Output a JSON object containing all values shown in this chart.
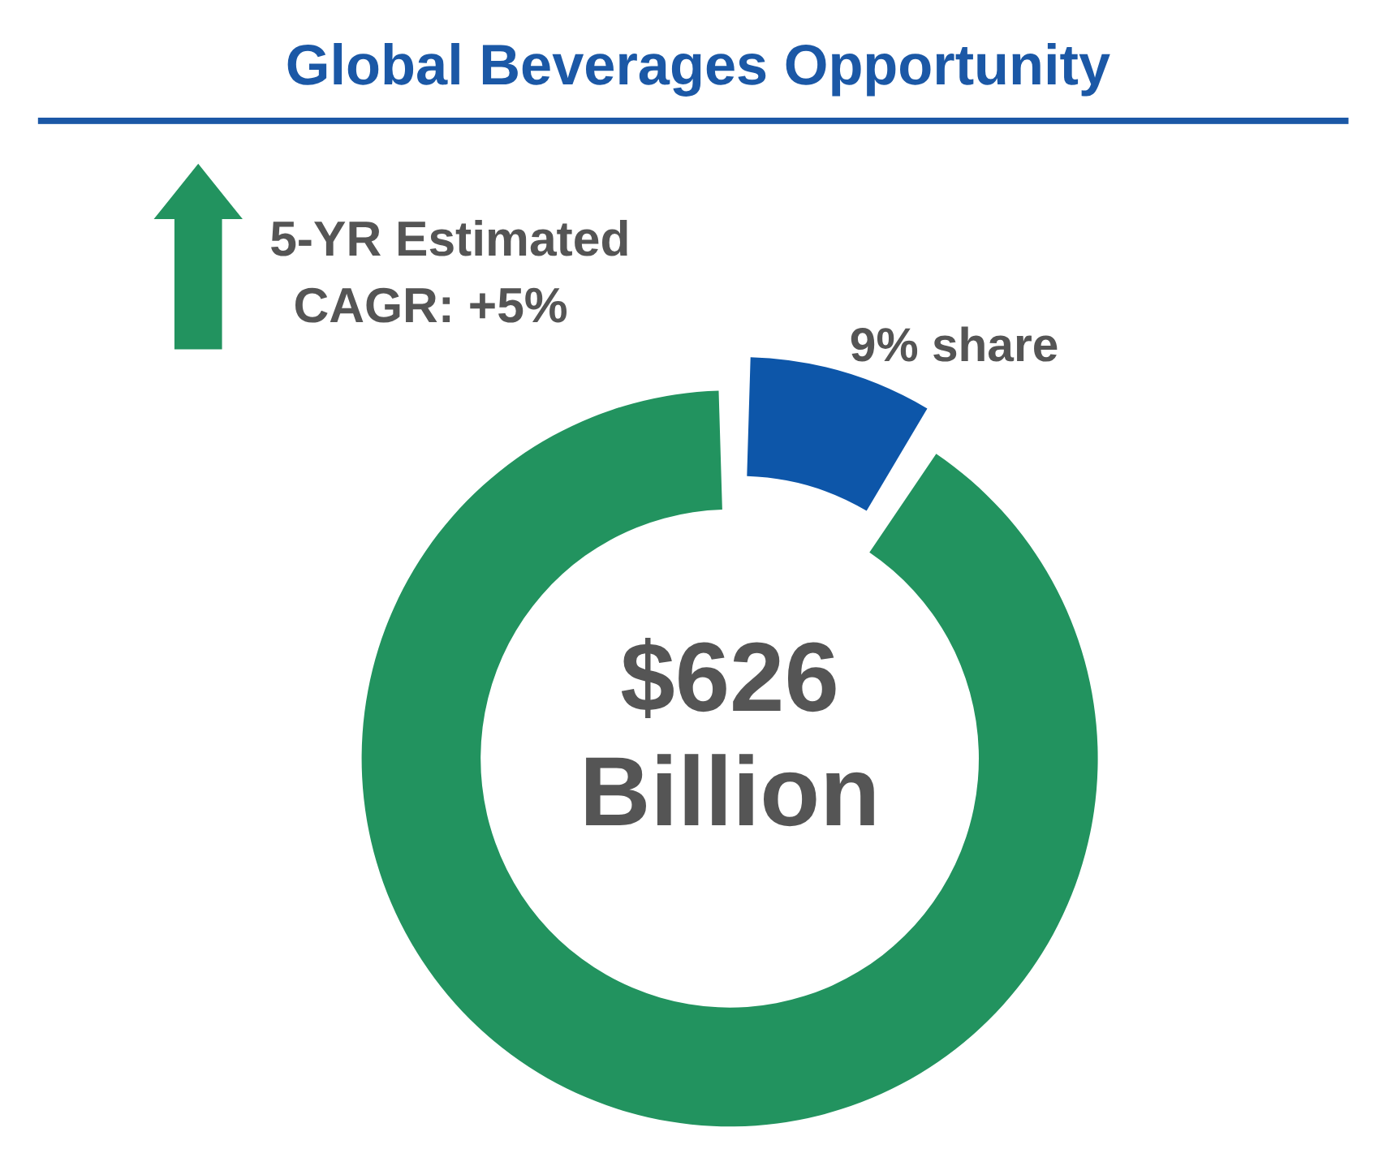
{
  "chart_data": {
    "type": "donut",
    "title": "Global Beverages Opportunity",
    "categories": [
      null,
      null
    ],
    "values": [
      9,
      91
    ],
    "colors": [
      "#0d56a9",
      "#22935f"
    ],
    "value_labels": [
      "9% share",
      null
    ],
    "annotations": [
      "5-YR Estimated CAGR: +5%",
      "$626 Billion"
    ]
  }
}
